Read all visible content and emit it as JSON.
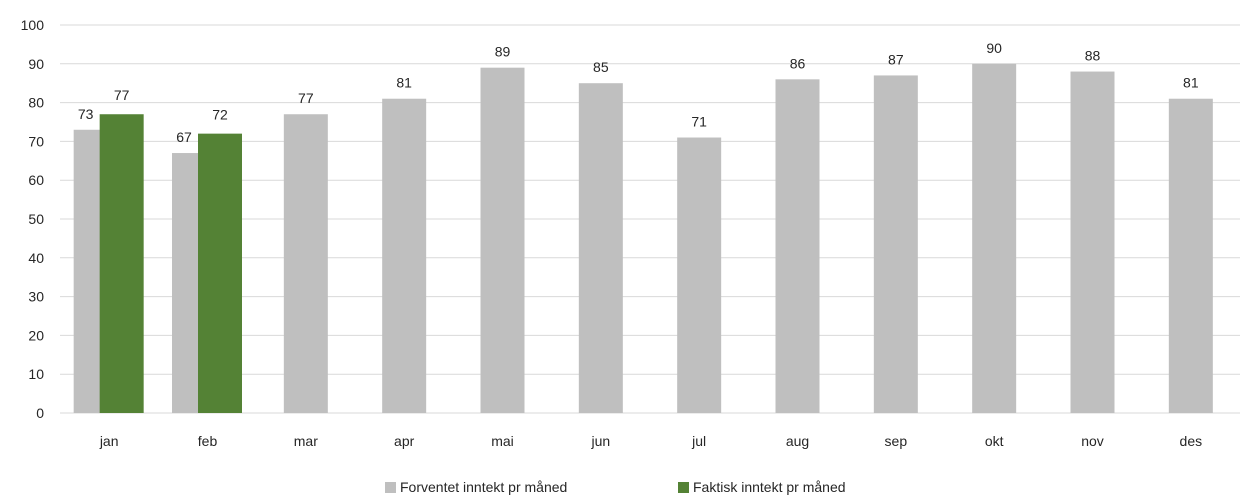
{
  "chart_data": {
    "type": "bar",
    "categories": [
      "jan",
      "feb",
      "mar",
      "apr",
      "mai",
      "jun",
      "jul",
      "aug",
      "sep",
      "okt",
      "nov",
      "des"
    ],
    "series": [
      {
        "name": "Forventet inntekt pr måned",
        "color": "#bfbfbf",
        "values": [
          73,
          67,
          77,
          81,
          89,
          85,
          71,
          86,
          87,
          90,
          88,
          81
        ]
      },
      {
        "name": "Faktisk inntekt pr måned",
        "color": "#548235",
        "values": [
          77,
          72,
          null,
          null,
          null,
          null,
          null,
          null,
          null,
          null,
          null,
          null
        ]
      }
    ],
    "ylim": [
      0,
      100
    ],
    "yticks": [
      0,
      10,
      20,
      30,
      40,
      50,
      60,
      70,
      80,
      90,
      100
    ],
    "grid": true,
    "legend": "bottom",
    "data_labels": true
  }
}
